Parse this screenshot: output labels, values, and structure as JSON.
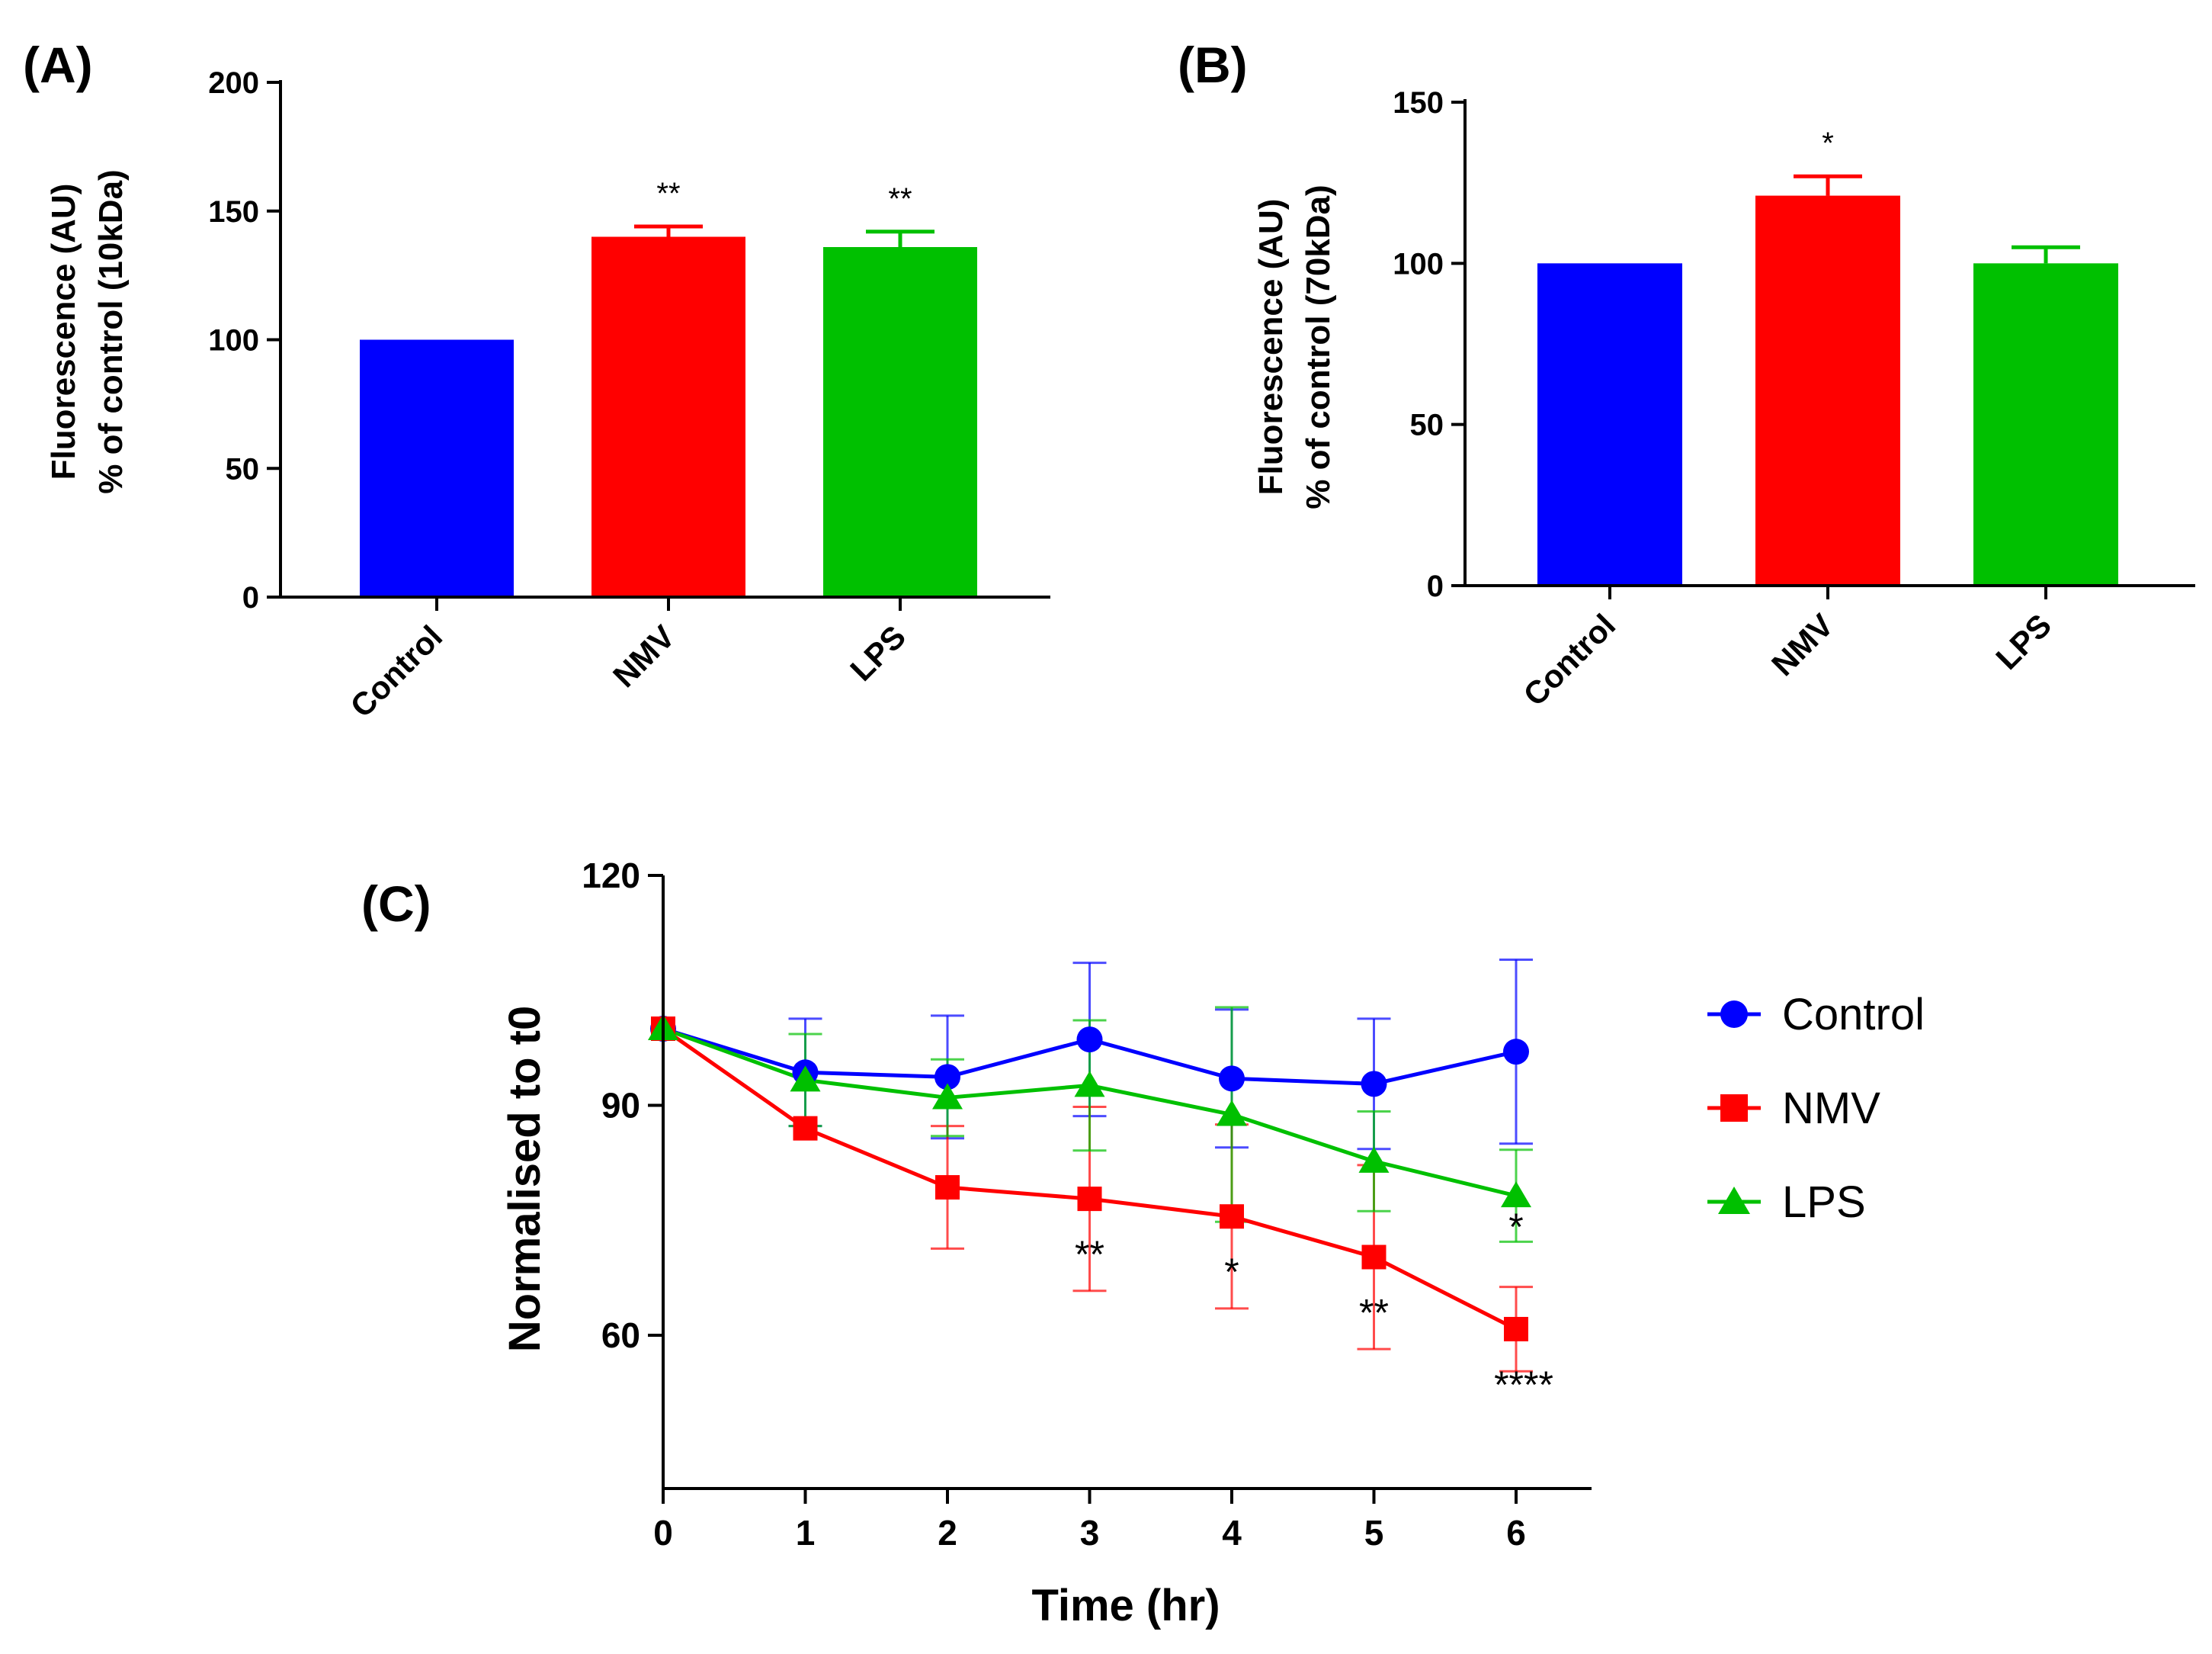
{
  "colors": {
    "Control": "#0000ff",
    "NMV": "#ff0000",
    "LPS": "#00c000"
  },
  "chart_data": [
    {
      "panel": "(A)",
      "type": "bar",
      "categories": [
        "Control",
        "NMV",
        "LPS"
      ],
      "values": [
        100,
        140,
        136
      ],
      "errors": [
        0,
        4,
        6
      ],
      "annotations": [
        "",
        "**",
        "**"
      ],
      "ylabel_line1": "Fluorescence (AU)",
      "ylabel_line2": "% of control (10kDa)",
      "ylim": [
        0,
        200
      ],
      "yticks": [
        "0",
        "50",
        "100",
        "150",
        "200"
      ]
    },
    {
      "panel": "(B)",
      "type": "bar",
      "categories": [
        "Control",
        "NMV",
        "LPS"
      ],
      "values": [
        100,
        121,
        100
      ],
      "errors": [
        0,
        6,
        5
      ],
      "annotations": [
        "",
        "*",
        ""
      ],
      "ylabel_line1": "Fluorescence (AU)",
      "ylabel_line2": "% of control (70kDa)",
      "ylim": [
        0,
        150
      ],
      "yticks": [
        "0",
        "50",
        "100",
        "150"
      ]
    },
    {
      "panel": "(C)",
      "type": "line",
      "x": [
        0,
        1,
        2,
        3,
        4,
        5,
        6
      ],
      "xticks": [
        "0",
        "1",
        "2",
        "3",
        "4",
        "5",
        "6"
      ],
      "yticks": [
        "60",
        "90",
        "120"
      ],
      "xlim": [
        0,
        6.5
      ],
      "ylim": [
        40,
        120
      ],
      "xlabel": "Time (hr)",
      "ylabel": "Normalised to t0",
      "series": [
        {
          "name": "Control",
          "values": [
            100,
            94.3,
            93.7,
            98.6,
            93.5,
            92.8,
            97
          ],
          "errors": [
            0,
            7,
            8,
            10,
            9,
            8.5,
            12
          ]
        },
        {
          "name": "NMV",
          "values": [
            100,
            87,
            79.3,
            77.8,
            75.5,
            70.2,
            60.8
          ],
          "errors": [
            0,
            0,
            8,
            12,
            12,
            12,
            5.5
          ]
        },
        {
          "name": "LPS",
          "values": [
            100,
            93.3,
            91,
            92.6,
            88.8,
            82.7,
            78.2
          ],
          "errors": [
            0,
            6,
            5,
            8.5,
            14,
            6.5,
            6
          ]
        }
      ],
      "annotations": [
        {
          "x": 3,
          "series": "NMV",
          "text": "**"
        },
        {
          "x": 4,
          "series": "NMV",
          "text": "*"
        },
        {
          "x": 5,
          "series": "NMV",
          "text": "**"
        },
        {
          "x": 6,
          "series": "NMV",
          "text": "****"
        },
        {
          "x": 6,
          "series": "LPS",
          "text": "*"
        }
      ],
      "legend": [
        "Control",
        "NMV",
        "LPS"
      ]
    }
  ]
}
